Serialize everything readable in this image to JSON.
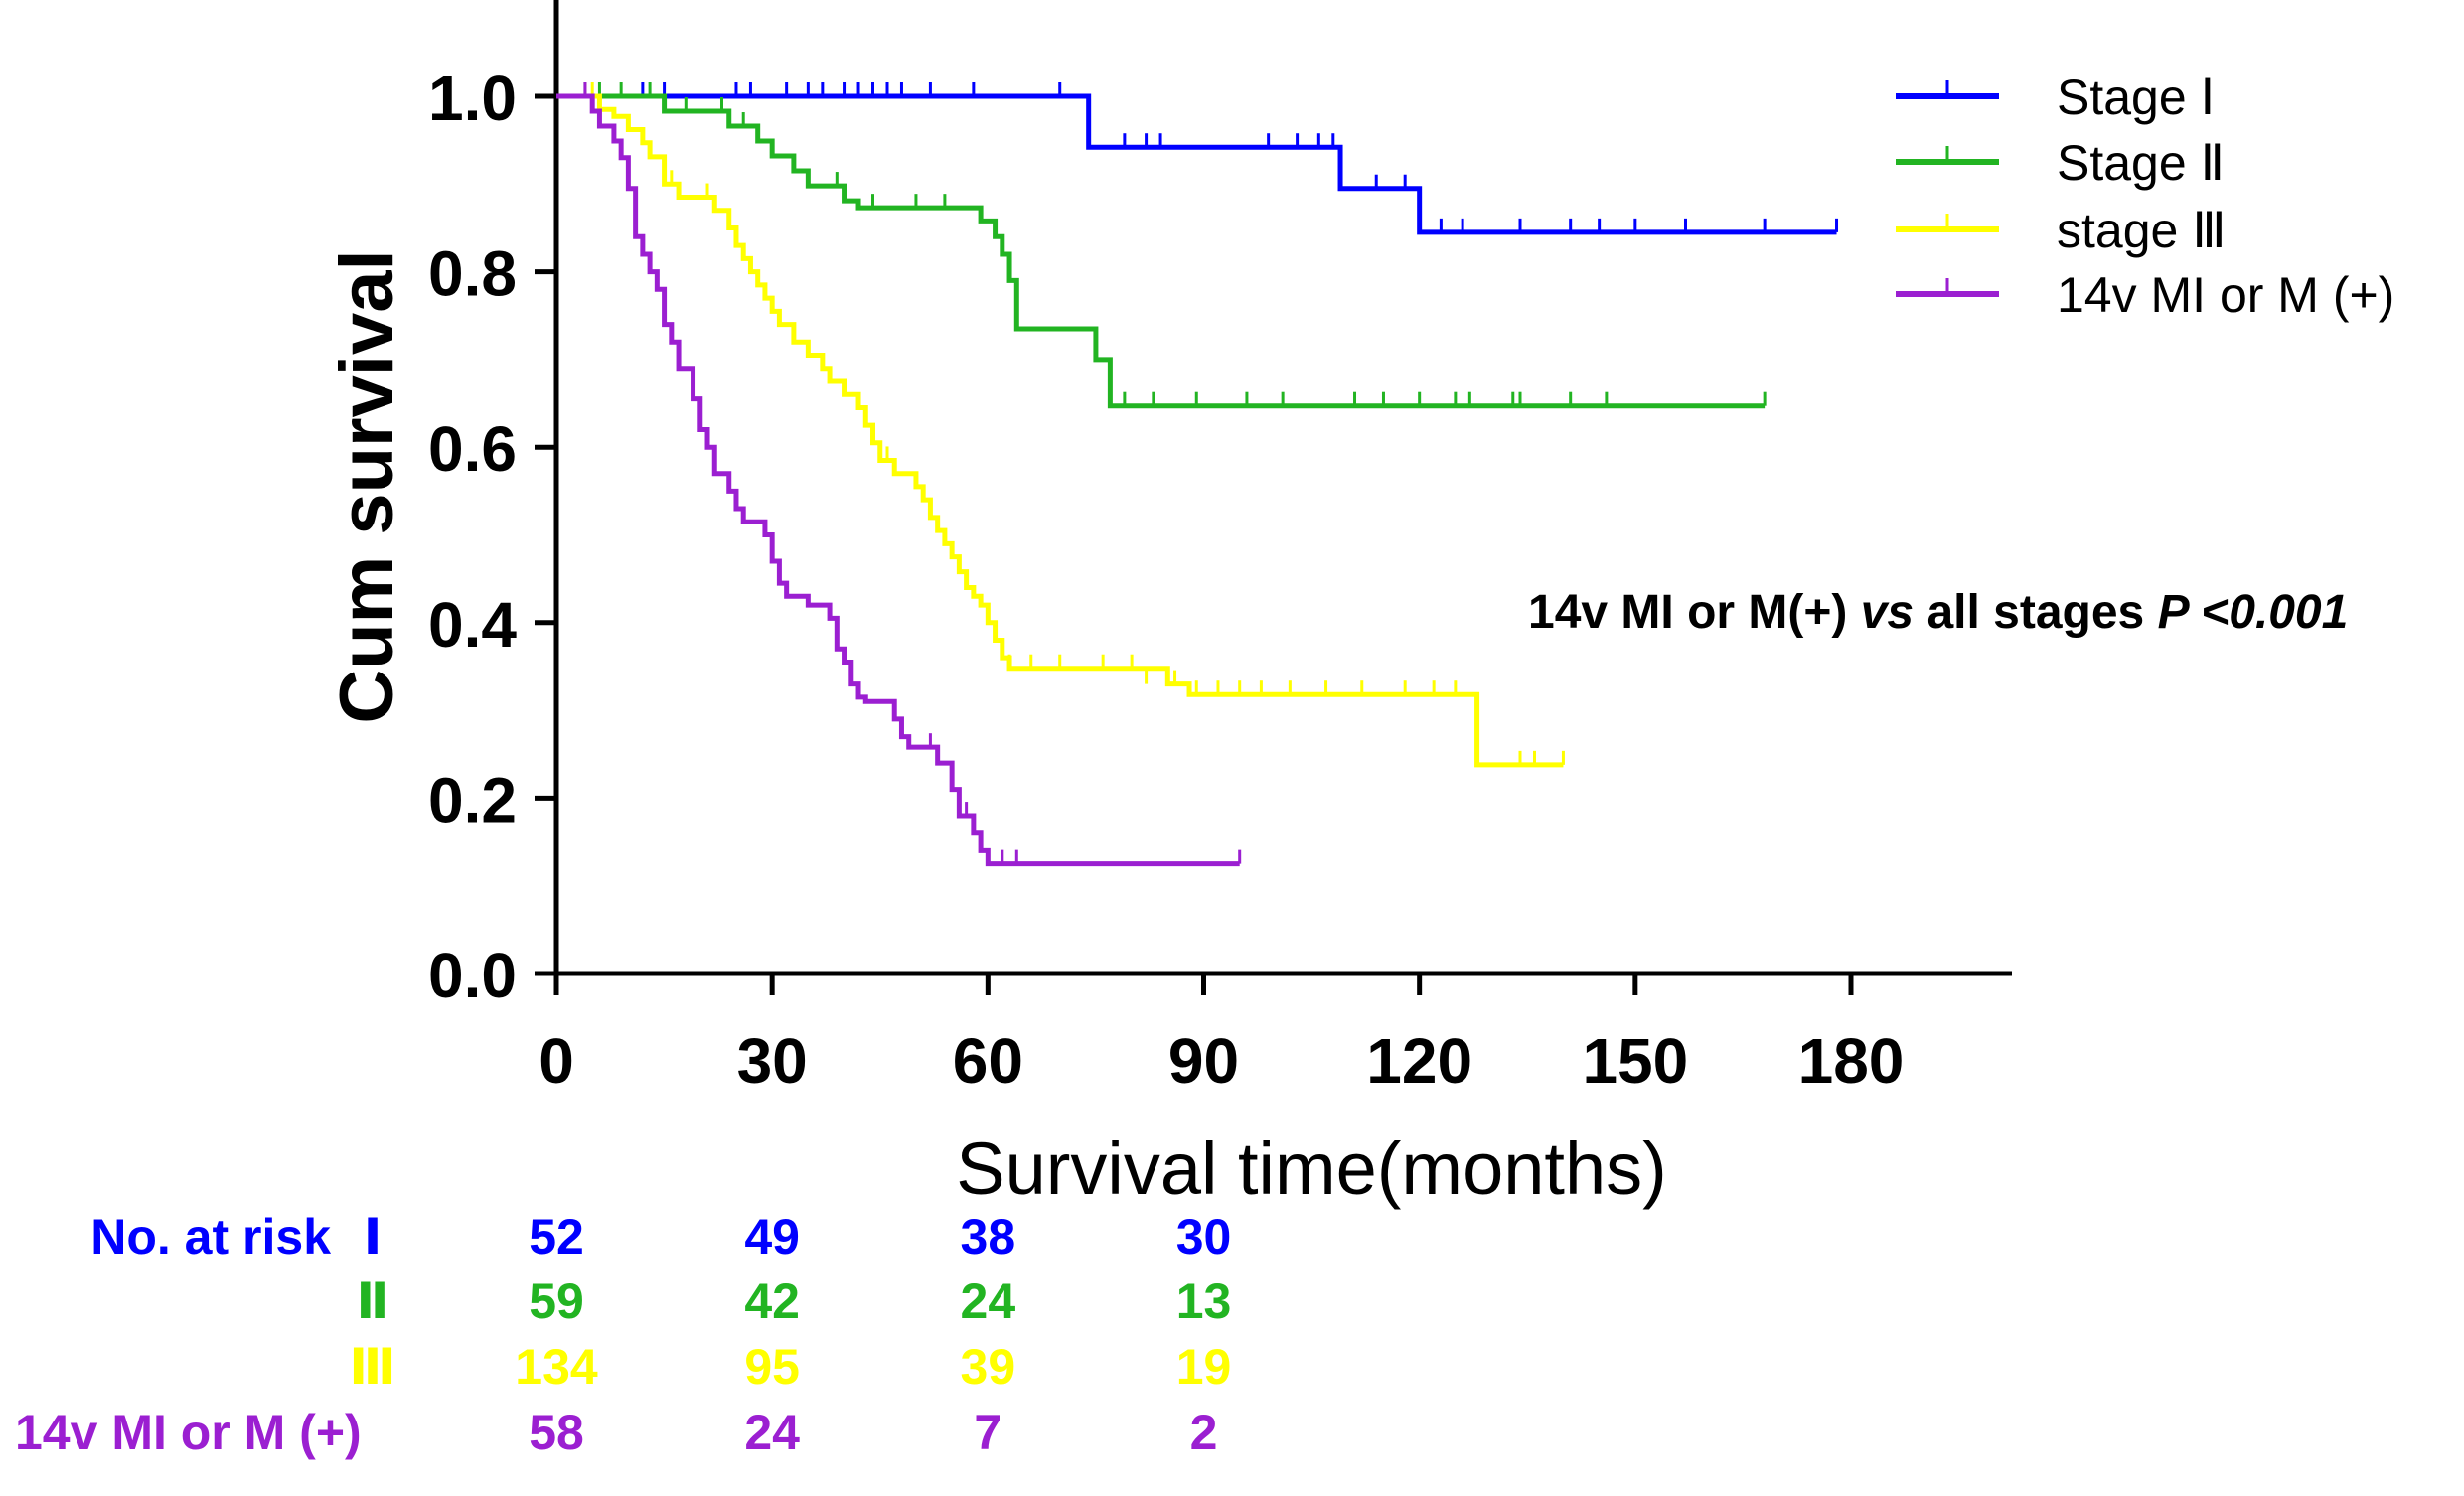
{
  "chart_data": {
    "type": "line",
    "subtype": "kaplan-meier-survival",
    "title": "",
    "xlabel": "Survival time(months)",
    "ylabel": "Cum survival",
    "xlim": [
      0,
      195
    ],
    "ylim": [
      0,
      1.1
    ],
    "x_ticks": [
      0,
      30,
      60,
      90,
      120,
      150,
      180
    ],
    "x_tick_labels": [
      "0",
      "30",
      "60",
      "90",
      "120",
      "150",
      "180"
    ],
    "y_ticks": [
      0,
      0.2,
      0.4,
      0.6,
      0.8,
      1.0
    ],
    "y_tick_labels": [
      "0.0",
      "0.2",
      "0.4",
      "0.6",
      "0.8",
      "1.0"
    ],
    "grid": false,
    "legend_position": "top-right",
    "annotation": {
      "prefix": "14v MI or M(+) ",
      "vs": "vs",
      "middle": " all stages ",
      "p": "P",
      "suffix": " <0.001"
    },
    "series": [
      {
        "name": "Stage Ⅰ",
        "color": "#0000ff",
        "steps": [
          [
            0,
            1.0
          ],
          [
            74,
            0.942
          ],
          [
            109,
            0.895
          ],
          [
            120,
            0.845
          ],
          [
            178,
            0.845
          ]
        ],
        "censored": [
          [
            4,
            1.0
          ],
          [
            12,
            1.0
          ],
          [
            15,
            1.0
          ],
          [
            25,
            1.0
          ],
          [
            27,
            1.0
          ],
          [
            32,
            1.0
          ],
          [
            35,
            1.0
          ],
          [
            37,
            1.0
          ],
          [
            40,
            1.0
          ],
          [
            42,
            1.0
          ],
          [
            44,
            1.0
          ],
          [
            46,
            1.0
          ],
          [
            48,
            1.0
          ],
          [
            52,
            1.0
          ],
          [
            58,
            1.0
          ],
          [
            70,
            1.0
          ],
          [
            79,
            0.942
          ],
          [
            82,
            0.942
          ],
          [
            84,
            0.942
          ],
          [
            99,
            0.942
          ],
          [
            103,
            0.942
          ],
          [
            106,
            0.942
          ],
          [
            108,
            0.942
          ],
          [
            114,
            0.895
          ],
          [
            118,
            0.895
          ],
          [
            123,
            0.845
          ],
          [
            126,
            0.845
          ],
          [
            134,
            0.845
          ],
          [
            141,
            0.845
          ],
          [
            145,
            0.845
          ],
          [
            150,
            0.845
          ],
          [
            157,
            0.845
          ],
          [
            168,
            0.845
          ],
          [
            178,
            0.845
          ]
        ]
      },
      {
        "name": "Stage Ⅱ",
        "color": "#22b422",
        "steps": [
          [
            0,
            1.0
          ],
          [
            15,
            0.983
          ],
          [
            20,
            0.983
          ],
          [
            24,
            0.966
          ],
          [
            28,
            0.949
          ],
          [
            30,
            0.932
          ],
          [
            33,
            0.915
          ],
          [
            35,
            0.898
          ],
          [
            40,
            0.881
          ],
          [
            42,
            0.873
          ],
          [
            57,
            0.873
          ],
          [
            59,
            0.858
          ],
          [
            61,
            0.84
          ],
          [
            62,
            0.82
          ],
          [
            63,
            0.79
          ],
          [
            64,
            0.735
          ],
          [
            73,
            0.735
          ],
          [
            75,
            0.7
          ],
          [
            77,
            0.647
          ],
          [
            168,
            0.647
          ]
        ],
        "censored": [
          [
            6,
            1.0
          ],
          [
            9,
            1.0
          ],
          [
            13,
            1.0
          ],
          [
            18,
            0.983
          ],
          [
            23,
            0.983
          ],
          [
            26,
            0.966
          ],
          [
            39,
            0.898
          ],
          [
            44,
            0.873
          ],
          [
            50,
            0.873
          ],
          [
            54,
            0.873
          ],
          [
            79,
            0.647
          ],
          [
            83,
            0.647
          ],
          [
            89,
            0.647
          ],
          [
            96,
            0.647
          ],
          [
            101,
            0.647
          ],
          [
            111,
            0.647
          ],
          [
            115,
            0.647
          ],
          [
            120,
            0.647
          ],
          [
            125,
            0.647
          ],
          [
            127,
            0.647
          ],
          [
            133,
            0.647
          ],
          [
            134,
            0.647
          ],
          [
            141,
            0.647
          ],
          [
            146,
            0.647
          ],
          [
            168,
            0.647
          ]
        ]
      },
      {
        "name": "stage Ⅲ",
        "color": "#ffff00",
        "steps": [
          [
            0,
            1.0
          ],
          [
            6,
            0.985
          ],
          [
            8,
            0.977
          ],
          [
            10,
            0.962
          ],
          [
            12,
            0.947
          ],
          [
            13,
            0.931
          ],
          [
            15,
            0.9
          ],
          [
            17,
            0.885
          ],
          [
            20,
            0.885
          ],
          [
            22,
            0.87
          ],
          [
            24,
            0.85
          ],
          [
            25,
            0.83
          ],
          [
            26,
            0.815
          ],
          [
            27,
            0.8
          ],
          [
            28,
            0.785
          ],
          [
            29,
            0.77
          ],
          [
            30,
            0.755
          ],
          [
            31,
            0.74
          ],
          [
            33,
            0.72
          ],
          [
            35,
            0.705
          ],
          [
            37,
            0.69
          ],
          [
            38,
            0.675
          ],
          [
            40,
            0.66
          ],
          [
            42,
            0.645
          ],
          [
            43,
            0.625
          ],
          [
            44,
            0.605
          ],
          [
            45,
            0.585
          ],
          [
            47,
            0.57
          ],
          [
            49,
            0.57
          ],
          [
            50,
            0.555
          ],
          [
            51,
            0.54
          ],
          [
            52,
            0.52
          ],
          [
            53,
            0.505
          ],
          [
            54,
            0.49
          ],
          [
            55,
            0.475
          ],
          [
            56,
            0.458
          ],
          [
            57,
            0.44
          ],
          [
            58,
            0.43
          ],
          [
            59,
            0.42
          ],
          [
            60,
            0.4
          ],
          [
            61,
            0.38
          ],
          [
            62,
            0.36
          ],
          [
            63,
            0.348
          ],
          [
            83,
            0.348
          ],
          [
            85,
            0.33
          ],
          [
            88,
            0.318
          ],
          [
            127,
            0.318
          ],
          [
            128,
            0.238
          ],
          [
            140,
            0.238
          ]
        ],
        "censored": [
          [
            4,
            1.0
          ],
          [
            5,
            1.0
          ],
          [
            13,
            0.931
          ],
          [
            16,
            0.9
          ],
          [
            21,
            0.885
          ],
          [
            46,
            0.585
          ],
          [
            63,
            0.348
          ],
          [
            66,
            0.348
          ],
          [
            70,
            0.348
          ],
          [
            76,
            0.348
          ],
          [
            80,
            0.348
          ],
          [
            82,
            0.33
          ],
          [
            86,
            0.33
          ],
          [
            89,
            0.318
          ],
          [
            92,
            0.318
          ],
          [
            95,
            0.318
          ],
          [
            98,
            0.318
          ],
          [
            102,
            0.318
          ],
          [
            107,
            0.318
          ],
          [
            112,
            0.318
          ],
          [
            118,
            0.318
          ],
          [
            122,
            0.318
          ],
          [
            125,
            0.318
          ],
          [
            134,
            0.238
          ],
          [
            136,
            0.238
          ],
          [
            140,
            0.238
          ]
        ]
      },
      {
        "name": "14v MI or M (+)",
        "color": "#9b1fd1",
        "steps": [
          [
            0,
            1.0
          ],
          [
            5,
            0.983
          ],
          [
            6,
            0.966
          ],
          [
            8,
            0.949
          ],
          [
            9,
            0.93
          ],
          [
            10,
            0.895
          ],
          [
            11,
            0.84
          ],
          [
            12,
            0.82
          ],
          [
            13,
            0.8
          ],
          [
            14,
            0.78
          ],
          [
            15,
            0.74
          ],
          [
            16,
            0.72
          ],
          [
            17,
            0.69
          ],
          [
            19,
            0.655
          ],
          [
            20,
            0.62
          ],
          [
            21,
            0.6
          ],
          [
            22,
            0.57
          ],
          [
            24,
            0.55
          ],
          [
            25,
            0.53
          ],
          [
            26,
            0.515
          ],
          [
            29,
            0.5
          ],
          [
            30,
            0.47
          ],
          [
            31,
            0.445
          ],
          [
            32,
            0.43
          ],
          [
            33,
            0.43
          ],
          [
            35,
            0.42
          ],
          [
            38,
            0.405
          ],
          [
            39,
            0.37
          ],
          [
            40,
            0.355
          ],
          [
            41,
            0.33
          ],
          [
            42,
            0.315
          ],
          [
            43,
            0.31
          ],
          [
            47,
            0.29
          ],
          [
            48,
            0.27
          ],
          [
            49,
            0.258
          ],
          [
            53,
            0.24
          ],
          [
            55,
            0.21
          ],
          [
            56,
            0.18
          ],
          [
            58,
            0.16
          ],
          [
            59,
            0.14
          ],
          [
            60,
            0.125
          ],
          [
            95,
            0.125
          ]
        ],
        "censored": [
          [
            4,
            1.0
          ],
          [
            52,
            0.258
          ],
          [
            57,
            0.18
          ],
          [
            62,
            0.125
          ],
          [
            64,
            0.125
          ],
          [
            95,
            0.125
          ]
        ]
      }
    ],
    "at_risk": {
      "label": "No. at risk",
      "times": [
        0,
        30,
        60,
        90
      ],
      "rows": [
        {
          "group": "Ⅰ",
          "color": "#0000ff",
          "values": [
            "52",
            "49",
            "38",
            "30"
          ]
        },
        {
          "group": "Ⅱ",
          "color": "#22b422",
          "values": [
            "59",
            "42",
            "24",
            "13"
          ]
        },
        {
          "group": "Ⅲ",
          "color": "#ffff00",
          "values": [
            "134",
            "95",
            "39",
            "19"
          ]
        },
        {
          "group": "14v MI or M (+)",
          "color": "#9b1fd1",
          "values": [
            "58",
            "24",
            "7",
            "2"
          ]
        }
      ]
    }
  }
}
